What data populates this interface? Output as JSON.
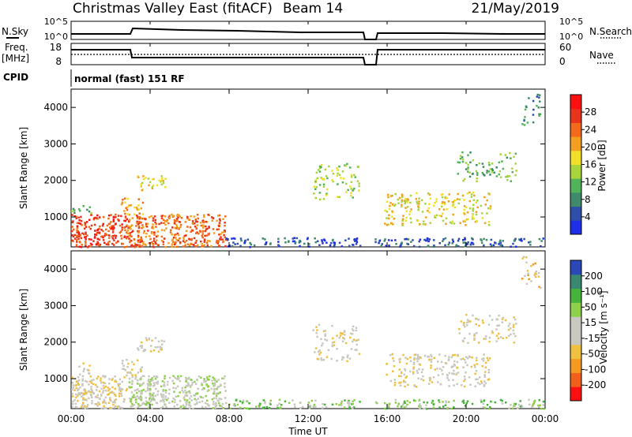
{
  "header": {
    "station": "Christmas Valley East (fitACF)",
    "beam": "Beam 14",
    "date": "21/May/2019"
  },
  "top_panels": {
    "nsky_label": "N.Sky",
    "nsky_ticks": [
      "10^5",
      "10^0"
    ],
    "nsearch_label": "N.Search",
    "nsearch_ticks": [
      "10^5",
      "10^0"
    ],
    "freq_label": "Freq.",
    "freq_unit": "[MHz]",
    "freq_ticks": [
      "18",
      "8"
    ],
    "nave_label": "Nave",
    "nave_ticks": [
      "60",
      "0"
    ],
    "cpid_label": "CPID",
    "cpid_value": "normal (fast) 151 RF"
  },
  "colors": {
    "power_scale": [
      "#1f2fe8",
      "#2e4fa8",
      "#3f8a6a",
      "#52b45a",
      "#a8d43c",
      "#f1e02a",
      "#f3a020",
      "#f26a1a",
      "#e8341a",
      "#ff1010"
    ],
    "velocity_scale": [
      "#ff1010",
      "#f0601a",
      "#f59a20",
      "#f0c040",
      "#c8c8c0",
      "#c8c8c0",
      "#8ed04a",
      "#46b43c",
      "#3a8870",
      "#2a48b8"
    ]
  },
  "chart_data": [
    {
      "type": "heatmap",
      "name": "power-panel",
      "ylabel": "Slant Range [km]",
      "xlabel": "Time UT",
      "x_ticks": [
        "00:00",
        "04:00",
        "08:00",
        "12:00",
        "16:00",
        "20:00",
        "00:00"
      ],
      "y_ticks": [
        "1000",
        "2000",
        "3000",
        "4000"
      ],
      "ylim": [
        180,
        4500
      ],
      "xlim_hours": [
        0,
        24
      ],
      "colorbar_label": "Power [dB]",
      "colorbar_ticks": [
        "4",
        "8",
        "12",
        "16",
        "20",
        "24",
        "28"
      ],
      "colorbar_range": [
        0,
        32
      ]
    },
    {
      "type": "heatmap",
      "name": "velocity-panel",
      "ylabel": "Slant Range [km]",
      "xlabel": "Time UT",
      "x_ticks": [
        "00:00",
        "04:00",
        "08:00",
        "12:00",
        "16:00",
        "20:00",
        "00:00"
      ],
      "y_ticks": [
        "1000",
        "2000",
        "3000",
        "4000"
      ],
      "ylim": [
        180,
        4500
      ],
      "xlim_hours": [
        0,
        24
      ],
      "colorbar_label": "Velocity [m s⁻¹]",
      "colorbar_ticks": [
        "200",
        "100",
        "50",
        "15",
        "-15",
        "-50",
        "-100",
        "-200"
      ]
    }
  ]
}
